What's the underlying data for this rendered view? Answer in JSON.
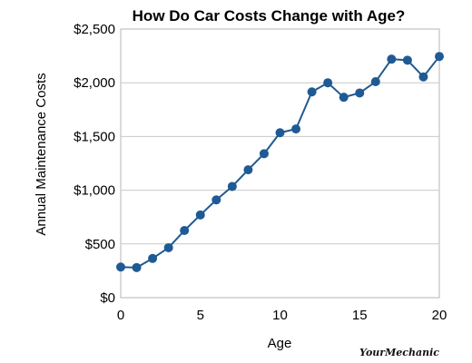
{
  "chart_data": {
    "type": "line",
    "title": "How Do Car Costs Change with Age?",
    "xlabel": "Age",
    "ylabel": "Annual Maintenance Costs",
    "xlim": [
      0,
      20
    ],
    "ylim": [
      0,
      2500
    ],
    "x_ticks": [
      0,
      5,
      10,
      15,
      20
    ],
    "x_tick_labels": [
      "0",
      "5",
      "10",
      "15",
      "20"
    ],
    "y_ticks": [
      0,
      500,
      1000,
      1500,
      2000,
      2500
    ],
    "y_tick_labels": [
      "$0",
      "$500",
      "$1,000",
      "$1,500",
      "$2,000",
      "$2,500"
    ],
    "grid": "horizontal",
    "legend": "none",
    "series": [
      {
        "color": "#1f5a94",
        "x": [
          0,
          1,
          2,
          3,
          4,
          5,
          6,
          7,
          8,
          9,
          10,
          11,
          12,
          13,
          14,
          15,
          16,
          17,
          18,
          19,
          20
        ],
        "values": [
          285,
          280,
          365,
          465,
          625,
          770,
          910,
          1035,
          1190,
          1340,
          1535,
          1570,
          1915,
          2000,
          1865,
          1905,
          2010,
          2220,
          2210,
          2055,
          2245
        ]
      }
    ]
  },
  "brand": {
    "logo_text": "YourMechanic"
  }
}
